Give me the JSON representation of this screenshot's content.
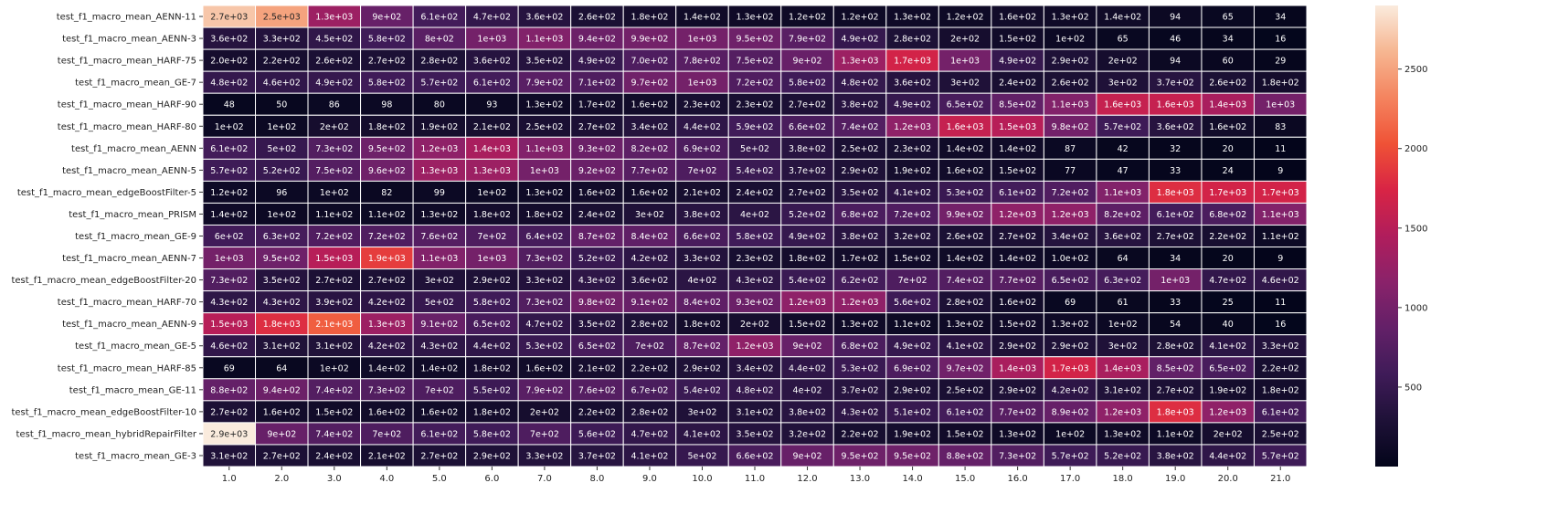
{
  "chart_data": {
    "type": "heatmap",
    "title": "",
    "xlabel": "",
    "ylabel": "",
    "colormap": "rocket",
    "vmin": 0,
    "vmax": 2900,
    "grid": true,
    "legend": "colorbar-right",
    "colorbar_ticks": [
      500,
      1000,
      1500,
      2000,
      2500
    ],
    "x_categories": [
      "1.0",
      "2.0",
      "3.0",
      "4.0",
      "5.0",
      "6.0",
      "7.0",
      "8.0",
      "9.0",
      "10.0",
      "11.0",
      "12.0",
      "13.0",
      "14.0",
      "15.0",
      "16.0",
      "17.0",
      "18.0",
      "19.0",
      "20.0",
      "21.0"
    ],
    "y_categories": [
      "test_f1_macro_mean_AENN-11",
      "test_f1_macro_mean_AENN-3",
      "test_f1_macro_mean_HARF-75",
      "test_f1_macro_mean_GE-7",
      "test_f1_macro_mean_HARF-90",
      "test_f1_macro_mean_HARF-80",
      "test_f1_macro_mean_AENN",
      "test_f1_macro_mean_AENN-5",
      "test_f1_macro_mean_edgeBoostFilter-5",
      "test_f1_macro_mean_PRISM",
      "test_f1_macro_mean_GE-9",
      "test_f1_macro_mean_AENN-7",
      "test_f1_macro_mean_edgeBoostFilter-20",
      "test_f1_macro_mean_HARF-70",
      "test_f1_macro_mean_AENN-9",
      "test_f1_macro_mean_GE-5",
      "test_f1_macro_mean_HARF-85",
      "test_f1_macro_mean_GE-11",
      "test_f1_macro_mean_edgeBoostFilter-10",
      "test_f1_macro_mean_hybridRepairFilter",
      "test_f1_macro_mean_GE-3"
    ],
    "values": [
      [
        2700,
        2500,
        1300,
        900,
        610,
        470,
        360,
        260,
        180,
        140,
        130,
        120,
        120,
        130,
        120,
        160,
        130,
        140,
        94,
        65,
        34
      ],
      [
        360,
        330,
        450,
        580,
        800,
        1000,
        1100,
        940,
        990,
        1000,
        950,
        790,
        490,
        280,
        200,
        150,
        100,
        65,
        46,
        34,
        16
      ],
      [
        200,
        220,
        260,
        270,
        280,
        360,
        350,
        490,
        700,
        780,
        750,
        900,
        1300,
        1700,
        1000,
        490,
        290,
        200,
        94,
        60,
        29
      ],
      [
        480,
        460,
        490,
        580,
        570,
        610,
        790,
        710,
        970,
        1000,
        720,
        580,
        480,
        360,
        300,
        240,
        260,
        300,
        370,
        260,
        180
      ],
      [
        48,
        50,
        86,
        98,
        80,
        93,
        130,
        170,
        160,
        230,
        230,
        270,
        380,
        490,
        650,
        850,
        1100,
        1600,
        1600,
        1400,
        1000
      ],
      [
        100,
        100,
        200,
        180,
        190,
        210,
        250,
        270,
        340,
        440,
        590,
        660,
        740,
        1200,
        1600,
        1500,
        980,
        570,
        360,
        160,
        83
      ],
      [
        610,
        500,
        730,
        950,
        1200,
        1400,
        1100,
        930,
        820,
        690,
        500,
        380,
        250,
        230,
        140,
        140,
        87,
        42,
        32,
        20,
        11
      ],
      [
        570,
        520,
        750,
        960,
        1300,
        1300,
        1000,
        920,
        770,
        700,
        540,
        370,
        290,
        190,
        160,
        150,
        77,
        47,
        33,
        24,
        9
      ],
      [
        120,
        96,
        100,
        82,
        99,
        100,
        130,
        160,
        160,
        210,
        240,
        270,
        350,
        410,
        530,
        610,
        720,
        1100,
        1800,
        1700,
        1700
      ],
      [
        140,
        100,
        110,
        110,
        130,
        180,
        180,
        240,
        300,
        380,
        400,
        520,
        680,
        720,
        990,
        1200,
        1200,
        820,
        610,
        680,
        1100
      ],
      [
        600,
        630,
        720,
        720,
        760,
        700,
        640,
        870,
        840,
        660,
        580,
        490,
        380,
        320,
        260,
        270,
        340,
        360,
        270,
        220,
        110
      ],
      [
        1000,
        950,
        1500,
        1900,
        1100,
        1000,
        730,
        520,
        420,
        330,
        230,
        180,
        170,
        150,
        140,
        140,
        100,
        64,
        34,
        20,
        9
      ],
      [
        730,
        350,
        270,
        270,
        300,
        290,
        330,
        430,
        360,
        400,
        430,
        540,
        620,
        700,
        740,
        770,
        650,
        630,
        1000,
        470,
        460
      ],
      [
        430,
        430,
        390,
        420,
        500,
        580,
        730,
        980,
        910,
        840,
        930,
        1200,
        1200,
        560,
        280,
        160,
        69,
        61,
        33,
        25,
        11
      ],
      [
        1500,
        1800,
        2100,
        1300,
        910,
        650,
        470,
        350,
        280,
        180,
        200,
        150,
        130,
        110,
        130,
        150,
        130,
        100,
        54,
        40,
        16
      ],
      [
        460,
        310,
        310,
        420,
        430,
        440,
        530,
        650,
        700,
        870,
        1200,
        900,
        680,
        490,
        410,
        290,
        290,
        300,
        280,
        410,
        330
      ],
      [
        69,
        64,
        100,
        140,
        140,
        180,
        160,
        210,
        220,
        290,
        340,
        440,
        530,
        690,
        970,
        1400,
        1700,
        1400,
        850,
        650,
        220
      ],
      [
        880,
        940,
        740,
        730,
        700,
        550,
        790,
        760,
        670,
        540,
        480,
        400,
        370,
        290,
        250,
        290,
        420,
        310,
        270,
        190,
        180
      ],
      [
        270,
        160,
        150,
        160,
        160,
        180,
        200,
        220,
        280,
        300,
        310,
        380,
        430,
        510,
        610,
        770,
        890,
        1200,
        1800,
        1200,
        610
      ],
      [
        2900,
        900,
        740,
        700,
        610,
        580,
        700,
        560,
        470,
        410,
        350,
        320,
        220,
        190,
        150,
        130,
        100,
        130,
        110,
        200,
        250
      ],
      [
        310,
        270,
        240,
        210,
        270,
        290,
        330,
        370,
        410,
        500,
        660,
        900,
        950,
        950,
        880,
        730,
        570,
        520,
        380,
        440,
        570
      ]
    ],
    "labels": [
      [
        "2.7e+03",
        "2.5e+03",
        "1.3e+03",
        "9e+02",
        "6.1e+02",
        "4.7e+02",
        "3.6e+02",
        "2.6e+02",
        "1.8e+02",
        "1.4e+02",
        "1.3e+02",
        "1.2e+02",
        "1.2e+02",
        "1.3e+02",
        "1.2e+02",
        "1.6e+02",
        "1.3e+02",
        "1.4e+02",
        "94",
        "65",
        "34"
      ],
      [
        "3.6e+02",
        "3.3e+02",
        "4.5e+02",
        "5.8e+02",
        "8e+02",
        "1e+03",
        "1.1e+03",
        "9.4e+02",
        "9.9e+02",
        "1e+03",
        "9.5e+02",
        "7.9e+02",
        "4.9e+02",
        "2.8e+02",
        "2e+02",
        "1.5e+02",
        "1e+02",
        "65",
        "46",
        "34",
        "16"
      ],
      [
        "2.0e+02",
        "2.2e+02",
        "2.6e+02",
        "2.7e+02",
        "2.8e+02",
        "3.6e+02",
        "3.5e+02",
        "4.9e+02",
        "7.0e+02",
        "7.8e+02",
        "7.5e+02",
        "9e+02",
        "1.3e+03",
        "1.7e+03",
        "1e+03",
        "4.9e+02",
        "2.9e+02",
        "2e+02",
        "94",
        "60",
        "29"
      ],
      [
        "4.8e+02",
        "4.6e+02",
        "4.9e+02",
        "5.8e+02",
        "5.7e+02",
        "6.1e+02",
        "7.9e+02",
        "7.1e+02",
        "9.7e+02",
        "1e+03",
        "7.2e+02",
        "5.8e+02",
        "4.8e+02",
        "3.6e+02",
        "3e+02",
        "2.4e+02",
        "2.6e+02",
        "3e+02",
        "3.7e+02",
        "2.6e+02",
        "1.8e+02"
      ],
      [
        "48",
        "50",
        "86",
        "98",
        "80",
        "93",
        "1.3e+02",
        "1.7e+02",
        "1.6e+02",
        "2.3e+02",
        "2.3e+02",
        "2.7e+02",
        "3.8e+02",
        "4.9e+02",
        "6.5e+02",
        "8.5e+02",
        "1.1e+03",
        "1.6e+03",
        "1.6e+03",
        "1.4e+03",
        "1e+03"
      ],
      [
        "1e+02",
        "1e+02",
        "2e+02",
        "1.8e+02",
        "1.9e+02",
        "2.1e+02",
        "2.5e+02",
        "2.7e+02",
        "3.4e+02",
        "4.4e+02",
        "5.9e+02",
        "6.6e+02",
        "7.4e+02",
        "1.2e+03",
        "1.6e+03",
        "1.5e+03",
        "9.8e+02",
        "5.7e+02",
        "3.6e+02",
        "1.6e+02",
        "83"
      ],
      [
        "6.1e+02",
        "5e+02",
        "7.3e+02",
        "9.5e+02",
        "1.2e+03",
        "1.4e+03",
        "1.1e+03",
        "9.3e+02",
        "8.2e+02",
        "6.9e+02",
        "5e+02",
        "3.8e+02",
        "2.5e+02",
        "2.3e+02",
        "1.4e+02",
        "1.4e+02",
        "87",
        "42",
        "32",
        "20",
        "11"
      ],
      [
        "5.7e+02",
        "5.2e+02",
        "7.5e+02",
        "9.6e+02",
        "1.3e+03",
        "1.3e+03",
        "1e+03",
        "9.2e+02",
        "7.7e+02",
        "7e+02",
        "5.4e+02",
        "3.7e+02",
        "2.9e+02",
        "1.9e+02",
        "1.6e+02",
        "1.5e+02",
        "77",
        "47",
        "33",
        "24",
        "9"
      ],
      [
        "1.2e+02",
        "96",
        "1e+02",
        "82",
        "99",
        "1e+02",
        "1.3e+02",
        "1.6e+02",
        "1.6e+02",
        "2.1e+02",
        "2.4e+02",
        "2.7e+02",
        "3.5e+02",
        "4.1e+02",
        "5.3e+02",
        "6.1e+02",
        "7.2e+02",
        "1.1e+03",
        "1.8e+03",
        "1.7e+03",
        "1.7e+03"
      ],
      [
        "1.4e+02",
        "1e+02",
        "1.1e+02",
        "1.1e+02",
        "1.3e+02",
        "1.8e+02",
        "1.8e+02",
        "2.4e+02",
        "3e+02",
        "3.8e+02",
        "4e+02",
        "5.2e+02",
        "6.8e+02",
        "7.2e+02",
        "9.9e+02",
        "1.2e+03",
        "1.2e+03",
        "8.2e+02",
        "6.1e+02",
        "6.8e+02",
        "1.1e+03"
      ],
      [
        "6e+02",
        "6.3e+02",
        "7.2e+02",
        "7.2e+02",
        "7.6e+02",
        "7e+02",
        "6.4e+02",
        "8.7e+02",
        "8.4e+02",
        "6.6e+02",
        "5.8e+02",
        "4.9e+02",
        "3.8e+02",
        "3.2e+02",
        "2.6e+02",
        "2.7e+02",
        "3.4e+02",
        "3.6e+02",
        "2.7e+02",
        "2.2e+02",
        "1.1e+02"
      ],
      [
        "1e+03",
        "9.5e+02",
        "1.5e+03",
        "1.9e+03",
        "1.1e+03",
        "1e+03",
        "7.3e+02",
        "5.2e+02",
        "4.2e+02",
        "3.3e+02",
        "2.3e+02",
        "1.8e+02",
        "1.7e+02",
        "1.5e+02",
        "1.4e+02",
        "1.4e+02",
        "1.0e+02",
        "64",
        "34",
        "20",
        "9"
      ],
      [
        "7.3e+02",
        "3.5e+02",
        "2.7e+02",
        "2.7e+02",
        "3e+02",
        "2.9e+02",
        "3.3e+02",
        "4.3e+02",
        "3.6e+02",
        "4e+02",
        "4.3e+02",
        "5.4e+02",
        "6.2e+02",
        "7e+02",
        "7.4e+02",
        "7.7e+02",
        "6.5e+02",
        "6.3e+02",
        "1e+03",
        "4.7e+02",
        "4.6e+02"
      ],
      [
        "4.3e+02",
        "4.3e+02",
        "3.9e+02",
        "4.2e+02",
        "5e+02",
        "5.8e+02",
        "7.3e+02",
        "9.8e+02",
        "9.1e+02",
        "8.4e+02",
        "9.3e+02",
        "1.2e+03",
        "1.2e+03",
        "5.6e+02",
        "2.8e+02",
        "1.6e+02",
        "69",
        "61",
        "33",
        "25",
        "11"
      ],
      [
        "1.5e+03",
        "1.8e+03",
        "2.1e+03",
        "1.3e+03",
        "9.1e+02",
        "6.5e+02",
        "4.7e+02",
        "3.5e+02",
        "2.8e+02",
        "1.8e+02",
        "2e+02",
        "1.5e+02",
        "1.3e+02",
        "1.1e+02",
        "1.3e+02",
        "1.5e+02",
        "1.3e+02",
        "1e+02",
        "54",
        "40",
        "16"
      ],
      [
        "4.6e+02",
        "3.1e+02",
        "3.1e+02",
        "4.2e+02",
        "4.3e+02",
        "4.4e+02",
        "5.3e+02",
        "6.5e+02",
        "7e+02",
        "8.7e+02",
        "1.2e+03",
        "9e+02",
        "6.8e+02",
        "4.9e+02",
        "4.1e+02",
        "2.9e+02",
        "2.9e+02",
        "3e+02",
        "2.8e+02",
        "4.1e+02",
        "3.3e+02"
      ],
      [
        "69",
        "64",
        "1e+02",
        "1.4e+02",
        "1.4e+02",
        "1.8e+02",
        "1.6e+02",
        "2.1e+02",
        "2.2e+02",
        "2.9e+02",
        "3.4e+02",
        "4.4e+02",
        "5.3e+02",
        "6.9e+02",
        "9.7e+02",
        "1.4e+03",
        "1.7e+03",
        "1.4e+03",
        "8.5e+02",
        "6.5e+02",
        "2.2e+02"
      ],
      [
        "8.8e+02",
        "9.4e+02",
        "7.4e+02",
        "7.3e+02",
        "7e+02",
        "5.5e+02",
        "7.9e+02",
        "7.6e+02",
        "6.7e+02",
        "5.4e+02",
        "4.8e+02",
        "4e+02",
        "3.7e+02",
        "2.9e+02",
        "2.5e+02",
        "2.9e+02",
        "4.2e+02",
        "3.1e+02",
        "2.7e+02",
        "1.9e+02",
        "1.8e+02"
      ],
      [
        "2.7e+02",
        "1.6e+02",
        "1.5e+02",
        "1.6e+02",
        "1.6e+02",
        "1.8e+02",
        "2e+02",
        "2.2e+02",
        "2.8e+02",
        "3e+02",
        "3.1e+02",
        "3.8e+02",
        "4.3e+02",
        "5.1e+02",
        "6.1e+02",
        "7.7e+02",
        "8.9e+02",
        "1.2e+03",
        "1.8e+03",
        "1.2e+03",
        "6.1e+02"
      ],
      [
        "2.9e+03",
        "9e+02",
        "7.4e+02",
        "7e+02",
        "6.1e+02",
        "5.8e+02",
        "7e+02",
        "5.6e+02",
        "4.7e+02",
        "4.1e+02",
        "3.5e+02",
        "3.2e+02",
        "2.2e+02",
        "1.9e+02",
        "1.5e+02",
        "1.3e+02",
        "1e+02",
        "1.3e+02",
        "1.1e+02",
        "2e+02",
        "2.5e+02"
      ],
      [
        "3.1e+02",
        "2.7e+02",
        "2.4e+02",
        "2.1e+02",
        "2.7e+02",
        "2.9e+02",
        "3.3e+02",
        "3.7e+02",
        "4.1e+02",
        "5e+02",
        "6.6e+02",
        "9e+02",
        "9.5e+02",
        "9.5e+02",
        "8.8e+02",
        "7.3e+02",
        "5.7e+02",
        "5.2e+02",
        "3.8e+02",
        "4.4e+02",
        "5.7e+02"
      ]
    ]
  }
}
